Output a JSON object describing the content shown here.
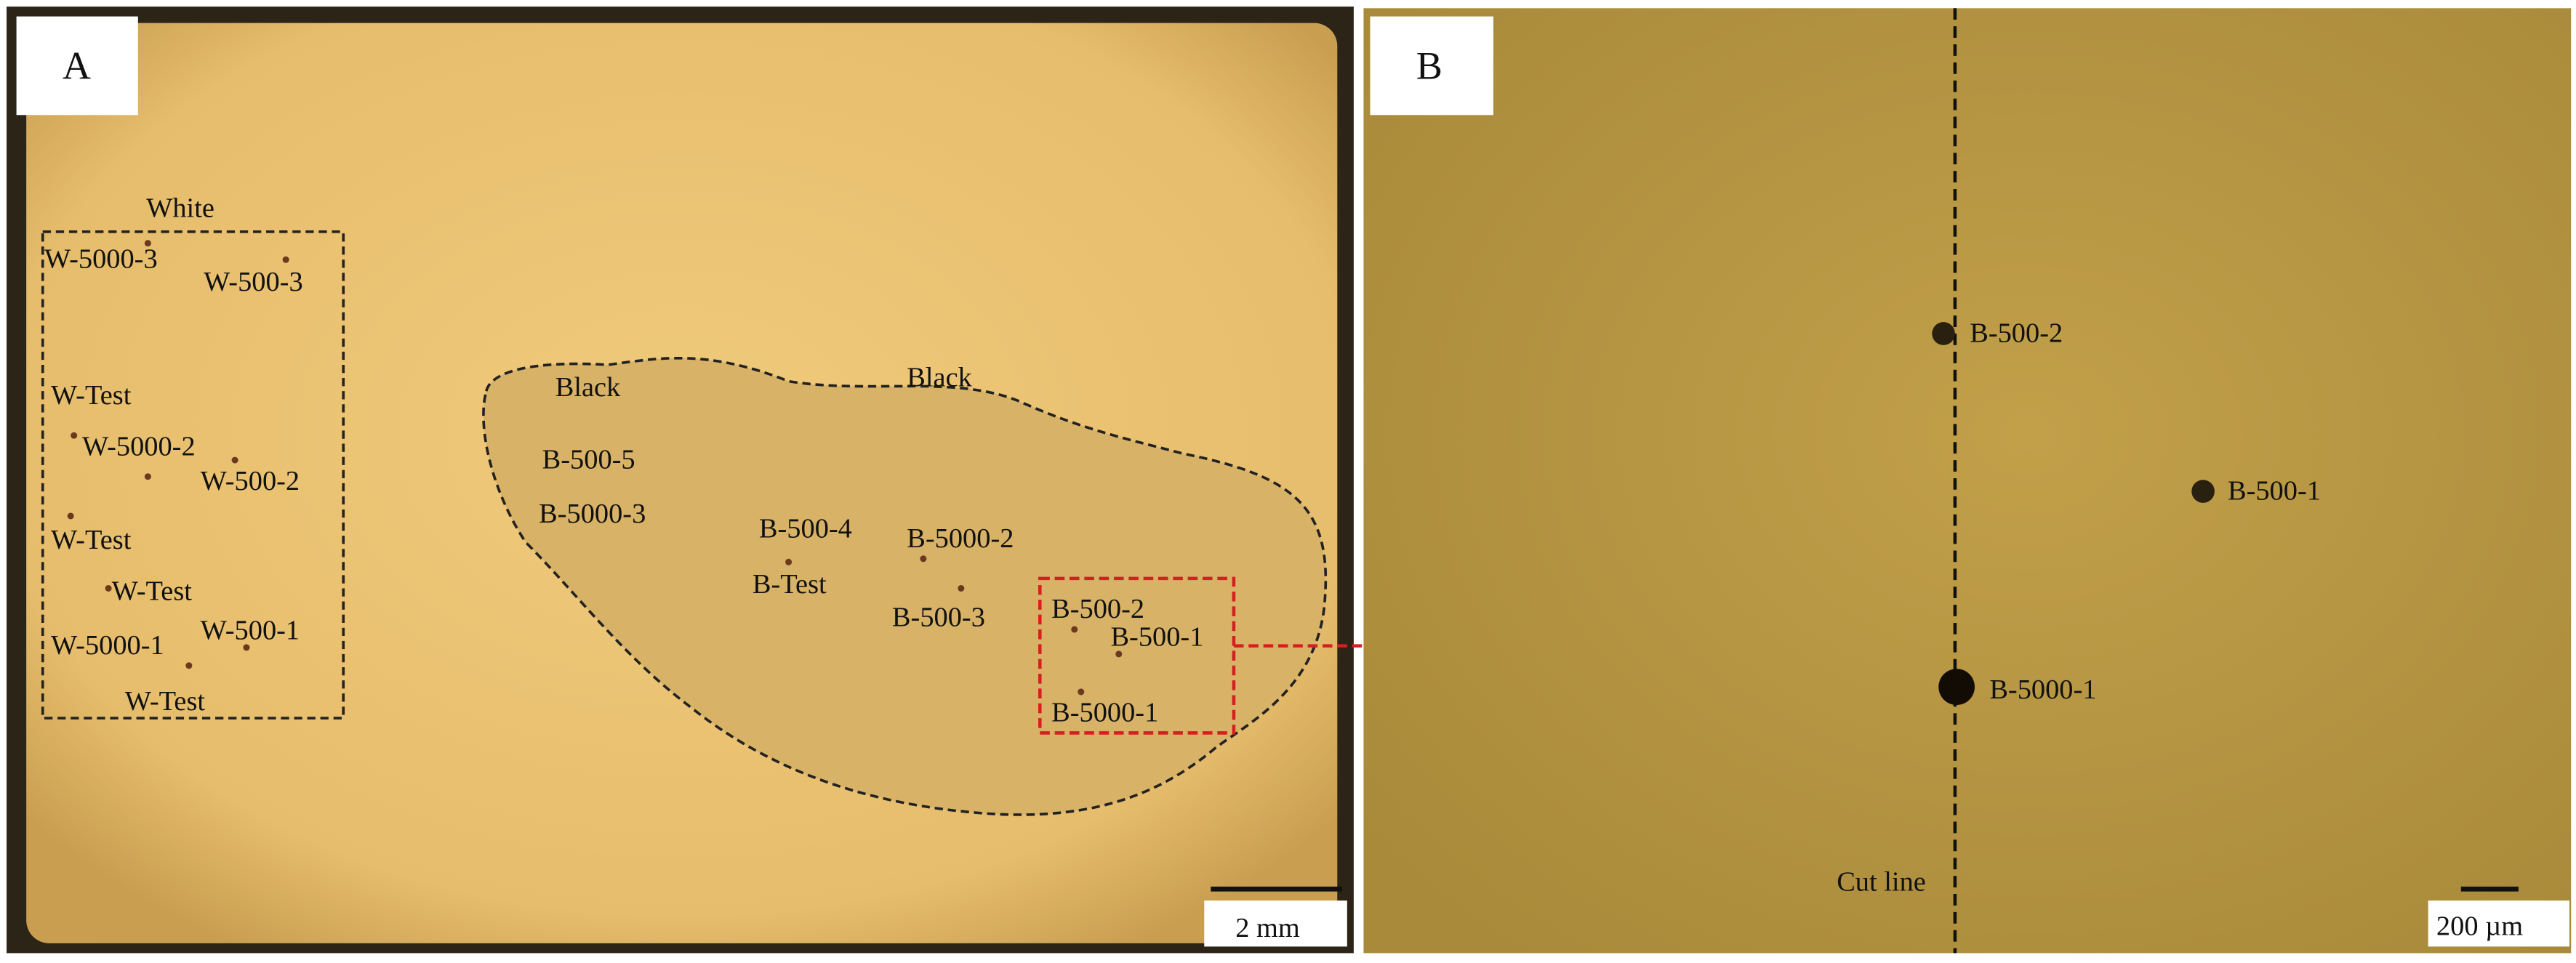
{
  "panel_a": {
    "label": "A",
    "region_labels": [
      "White",
      "Black",
      "Black"
    ],
    "white_spots": [
      "W-5000-3",
      "W-500-3",
      "W-Test",
      "W-5000-2",
      "W-500-2",
      "W-Test",
      "W-Test",
      "W-5000-1",
      "W-500-1",
      "W-Test"
    ],
    "black_spots": [
      "B-500-5",
      "B-5000-3",
      "B-500-4",
      "B-5000-2",
      "B-Test",
      "B-500-3",
      "B-500-2",
      "B-500-1",
      "B-5000-1"
    ],
    "scale_bar": "2 mm"
  },
  "panel_b": {
    "label": "B",
    "spots": [
      "B-500-2",
      "B-500-1",
      "B-5000-1"
    ],
    "cut_line": "Cut line",
    "scale_bar": "200 µm"
  }
}
